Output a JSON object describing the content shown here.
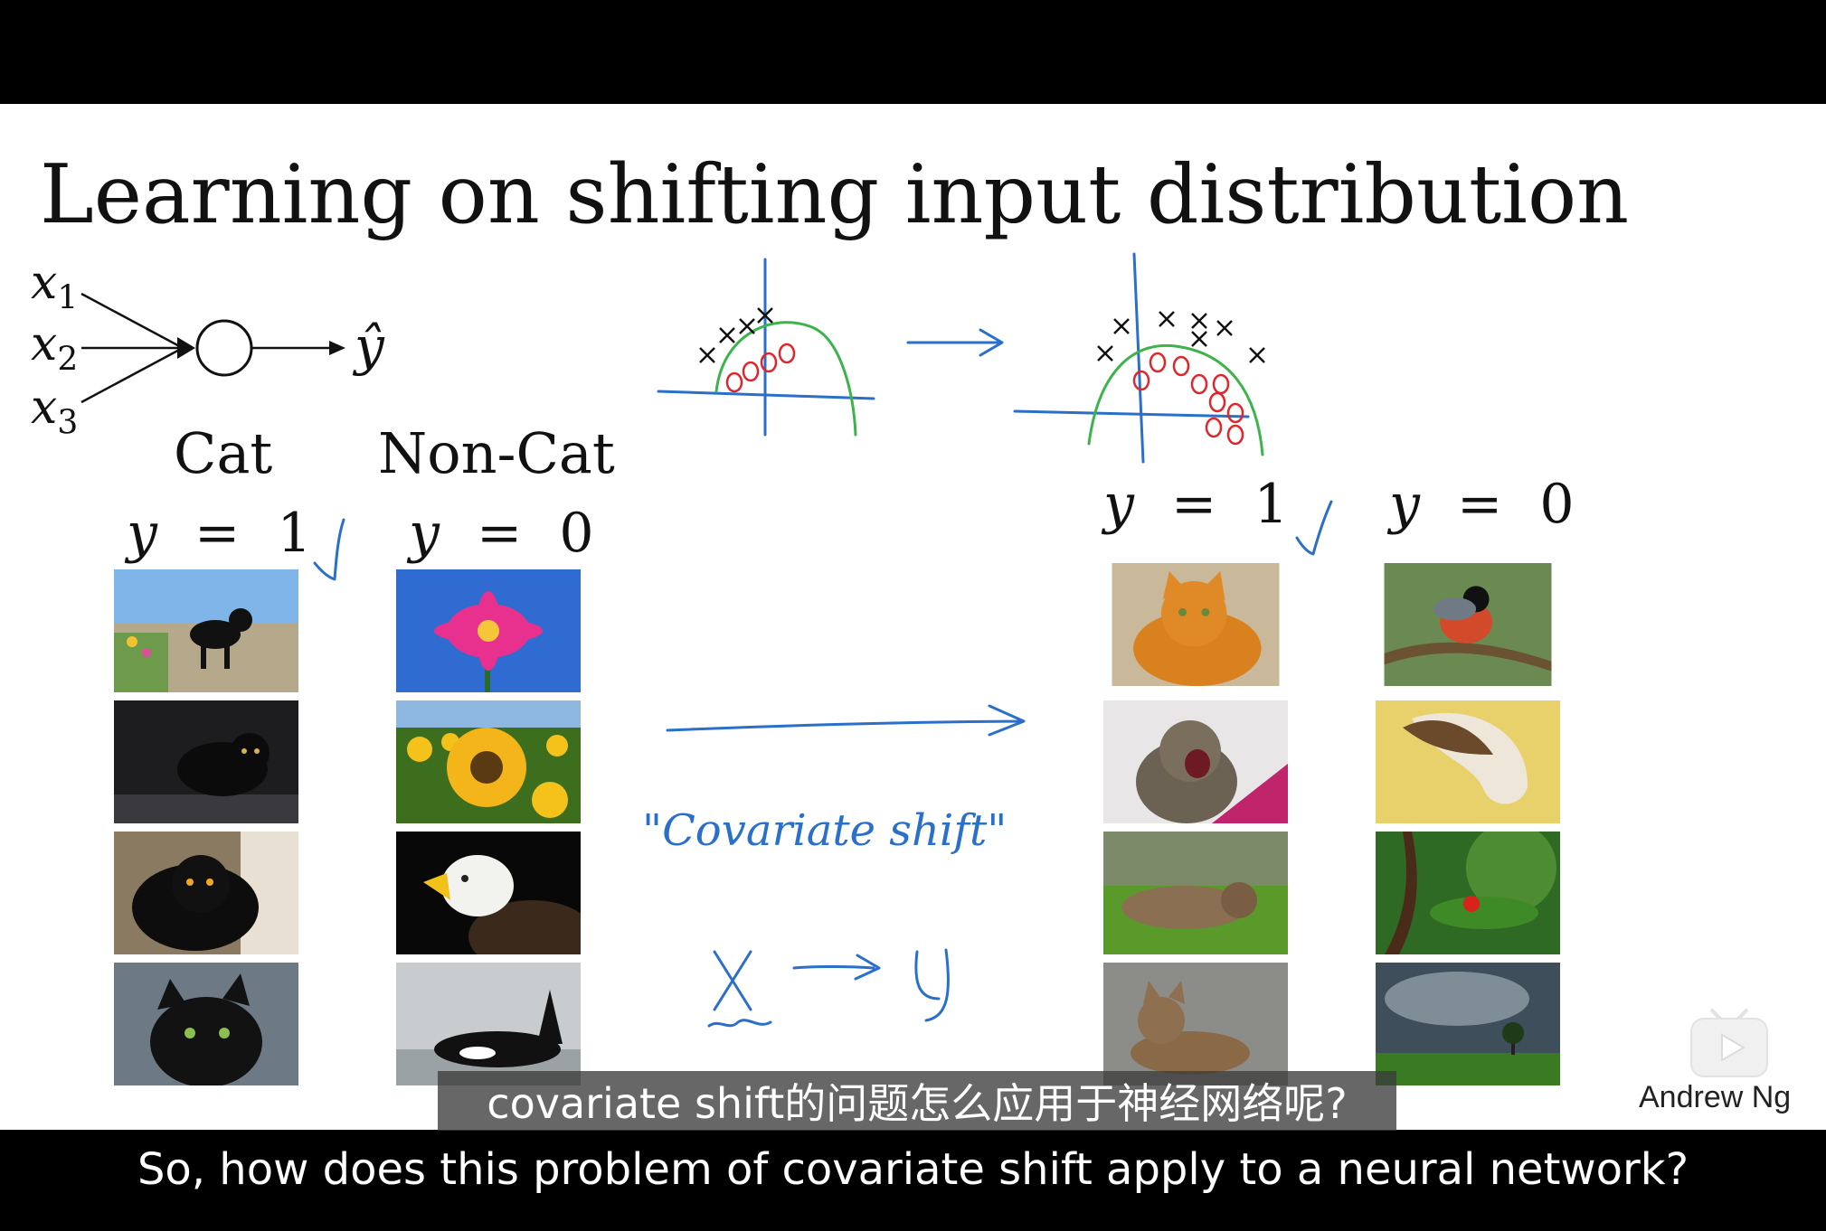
{
  "slide": {
    "title": "Learning on shifting input distribution",
    "network": {
      "inputs": [
        "x1",
        "x2",
        "x3"
      ],
      "output": "ŷ"
    },
    "left_headers": {
      "cat": "Cat",
      "noncat": "Non-Cat",
      "cat_eq_var": "y",
      "cat_eq_op": "=",
      "cat_eq_val": "1",
      "noncat_eq_var": "y",
      "noncat_eq_op": "=",
      "noncat_eq_val": "0"
    },
    "right_headers": {
      "cat_eq_var": "y",
      "cat_eq_op": "=",
      "cat_eq_val": "1",
      "noncat_eq_var": "y",
      "noncat_eq_op": "=",
      "noncat_eq_val": "0"
    },
    "annotation_text": "\"Covariate shift\"",
    "annotation_mapping": "X → y",
    "images": {
      "left_cats": [
        "black cat on wall",
        "black cat lying",
        "black fluffy cat",
        "black cat close-up"
      ],
      "left_noncats": [
        "pink flower",
        "sunflowers",
        "eagle",
        "orca"
      ],
      "right_cats": [
        "orange cat",
        "yawning cat",
        "cat on grass",
        "cat on gravel"
      ],
      "right_noncats": [
        "bullfinch",
        "horse",
        "ladybug",
        "tree under storm"
      ]
    },
    "author": "Andrew Ng"
  },
  "subtitles": {
    "chinese": "covariate shift的问题怎么应用于神经网络呢?",
    "english": "So, how does this problem of covariate shift apply to a neural network?"
  },
  "colors": {
    "ink_blue": "#2a6fc9",
    "ink_green": "#3cb44b",
    "ink_red": "#e0262b",
    "letterbox": "#000000"
  }
}
